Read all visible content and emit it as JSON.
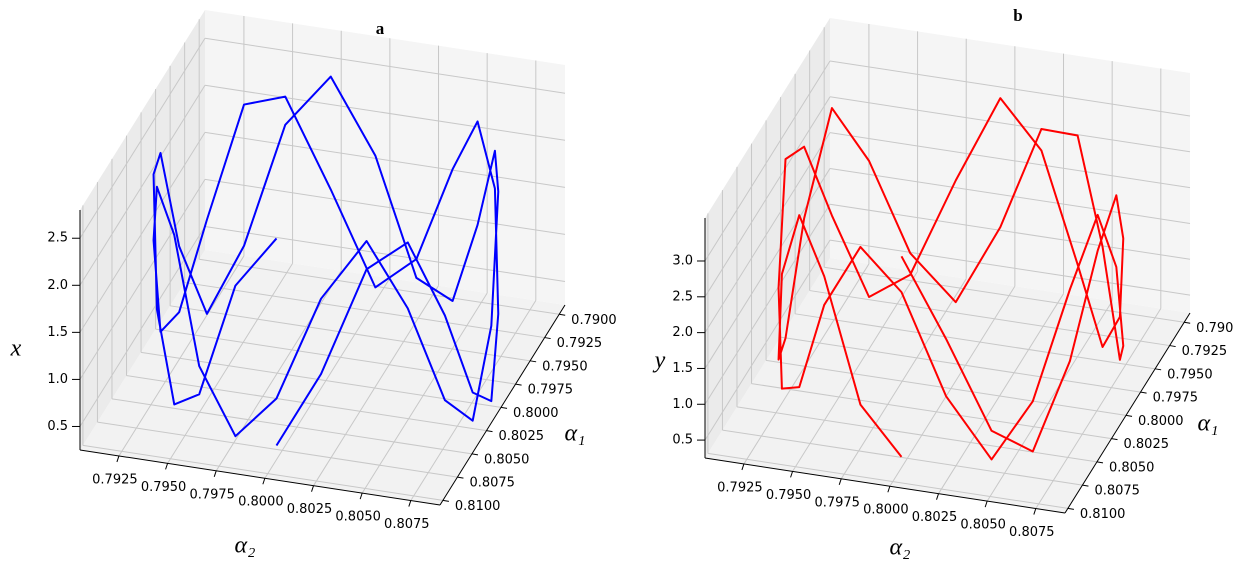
{
  "chart_data": [
    {
      "type": "line3d",
      "title": "a",
      "xlabel": "α₁",
      "ylabel": "α₂",
      "zlabel": "x",
      "color": "#0000ff",
      "xlim": [
        0.789,
        0.8105
      ],
      "ylim": [
        0.7905,
        0.809
      ],
      "zlim": [
        0.25,
        2.8
      ],
      "xticks": [
        {
          "value": 0.79,
          "label": "0.7900"
        },
        {
          "value": 0.7925,
          "label": "0.7925"
        },
        {
          "value": 0.795,
          "label": "0.7950"
        },
        {
          "value": 0.7975,
          "label": "0.7975"
        },
        {
          "value": 0.8,
          "label": "0.8000"
        },
        {
          "value": 0.8025,
          "label": "0.8025"
        },
        {
          "value": 0.805,
          "label": "0.8050"
        },
        {
          "value": 0.8075,
          "label": "0.8075"
        },
        {
          "value": 0.81,
          "label": "0.8100"
        }
      ],
      "yticks": [
        {
          "value": 0.7925,
          "label": "0.7925"
        },
        {
          "value": 0.795,
          "label": "0.7950"
        },
        {
          "value": 0.7975,
          "label": "0.7975"
        },
        {
          "value": 0.8,
          "label": "0.8000"
        },
        {
          "value": 0.8025,
          "label": "0.8025"
        },
        {
          "value": 0.805,
          "label": "0.8050"
        },
        {
          "value": 0.8075,
          "label": "0.8075"
        }
      ],
      "zticks": [
        0.5,
        {
          "value": 1,
          "label": "1.0"
        },
        1.5,
        {
          "value": 2,
          "label": "2.0"
        },
        2.5
      ],
      "x": [
        0.8085,
        0.8082,
        0.8074,
        0.806,
        0.8043,
        0.8022,
        0.8,
        0.7978,
        0.7957,
        0.794,
        0.7926,
        0.7918,
        0.7915,
        0.7918,
        0.7926,
        0.794,
        0.7957,
        0.7978,
        0.8,
        0.8022,
        0.8043,
        0.806,
        0.8074,
        0.8082,
        0.8085,
        0.8082,
        0.8074,
        0.806,
        0.8043,
        0.8022,
        0.8,
        0.7978,
        0.7957,
        0.794,
        0.7926,
        0.7918,
        0.7915,
        0.7918,
        0.7926,
        0.794,
        0.7957,
        0.7978,
        0.8,
        0.8022,
        0.8043,
        0.806,
        0.8074,
        0.8082,
        0.8085
      ],
      "y": [
        0.8,
        0.8022,
        0.8043,
        0.806,
        0.8074,
        0.8082,
        0.8085,
        0.8082,
        0.8074,
        0.806,
        0.8043,
        0.8022,
        0.8,
        0.7978,
        0.7957,
        0.794,
        0.7926,
        0.7918,
        0.7915,
        0.7918,
        0.7926,
        0.794,
        0.7957,
        0.7978,
        0.8,
        0.8022,
        0.8043,
        0.806,
        0.8074,
        0.8082,
        0.8085,
        0.8082,
        0.8074,
        0.806,
        0.8043,
        0.8022,
        0.8,
        0.7978,
        0.7957,
        0.794,
        0.7926,
        0.7918,
        0.7915,
        0.7918,
        0.7926,
        0.794,
        0.7957,
        0.7978,
        0.8
      ],
      "z": [
        0.4,
        1.2,
        2.3,
        2.5,
        1.6,
        0.6,
        0.3,
        1.0,
        2.1,
        2.6,
        1.9,
        0.8,
        0.4,
        1.4,
        2.4,
        2.4,
        1.3,
        0.5,
        0.5,
        1.7,
        2.5,
        2.2,
        1.0,
        0.4,
        0.9,
        2.0,
        2.6,
        1.8,
        0.7,
        0.3,
        1.1,
        2.3,
        2.5,
        1.5,
        0.5,
        0.6,
        1.8,
        2.6,
        2.1,
        0.9,
        0.3,
        1.2,
        2.4,
        2.4,
        1.2,
        0.4,
        0.7,
        2.0,
        2.6
      ]
    },
    {
      "type": "line3d",
      "title": "b",
      "xlabel": "α₁",
      "ylabel": "α₂",
      "zlabel": "y",
      "color": "#ff0000",
      "xlim": [
        0.789,
        0.8105
      ],
      "ylim": [
        0.7905,
        0.809
      ],
      "zlim": [
        0.25,
        3.6
      ],
      "xticks": [
        {
          "value": 0.79,
          "label": "0.7900"
        },
        {
          "value": 0.7925,
          "label": "0.7925"
        },
        {
          "value": 0.795,
          "label": "0.7950"
        },
        {
          "value": 0.7975,
          "label": "0.7975"
        },
        {
          "value": 0.8,
          "label": "0.8000"
        },
        {
          "value": 0.8025,
          "label": "0.8025"
        },
        {
          "value": 0.805,
          "label": "0.8050"
        },
        {
          "value": 0.8075,
          "label": "0.8075"
        },
        {
          "value": 0.81,
          "label": "0.8100"
        }
      ],
      "yticks": [
        {
          "value": 0.7925,
          "label": "0.7925"
        },
        {
          "value": 0.795,
          "label": "0.7950"
        },
        {
          "value": 0.7975,
          "label": "0.7975"
        },
        {
          "value": 0.8,
          "label": "0.8000"
        },
        {
          "value": 0.8025,
          "label": "0.8025"
        },
        {
          "value": 0.805,
          "label": "0.8050"
        },
        {
          "value": 0.8075,
          "label": "0.8075"
        }
      ],
      "zticks": [
        0.5,
        {
          "value": 1,
          "label": "1.0"
        },
        1.5,
        {
          "value": 2,
          "label": "2.0"
        },
        2.5,
        {
          "value": 3,
          "label": "3.0"
        }
      ],
      "x": [
        0.8085,
        0.8082,
        0.8074,
        0.806,
        0.8043,
        0.8022,
        0.8,
        0.7978,
        0.7957,
        0.794,
        0.7926,
        0.7918,
        0.7915,
        0.7918,
        0.7926,
        0.794,
        0.7957,
        0.7978,
        0.8,
        0.8022,
        0.8043,
        0.806,
        0.8074,
        0.8082,
        0.8085,
        0.8082,
        0.8074,
        0.806,
        0.8043,
        0.8022,
        0.8,
        0.7978,
        0.7957,
        0.794,
        0.7926,
        0.7918,
        0.7915,
        0.7918,
        0.7926,
        0.794,
        0.7957,
        0.7978,
        0.8,
        0.8022,
        0.8043,
        0.806,
        0.8074,
        0.8082,
        0.8085
      ],
      "y": [
        0.8,
        0.8022,
        0.8043,
        0.806,
        0.8074,
        0.8082,
        0.8085,
        0.8082,
        0.8074,
        0.806,
        0.8043,
        0.8022,
        0.8,
        0.7978,
        0.7957,
        0.794,
        0.7926,
        0.7918,
        0.7915,
        0.7918,
        0.7926,
        0.794,
        0.7957,
        0.7978,
        0.8,
        0.8022,
        0.8043,
        0.806,
        0.8074,
        0.8082,
        0.8085,
        0.8082,
        0.8074,
        0.806,
        0.8043,
        0.8022,
        0.8,
        0.7978,
        0.7957,
        0.794,
        0.7926,
        0.7918,
        0.7915,
        0.7918,
        0.7926,
        0.794,
        0.7957,
        0.7978,
        0.8
      ],
      "z": [
        3.2,
        2.1,
        0.8,
        0.4,
        1.5,
        2.8,
        3.3,
        2.4,
        1.0,
        0.3,
        1.2,
        2.6,
        3.2,
        2.0,
        0.7,
        0.5,
        1.8,
        3.0,
        3.1,
        1.6,
        0.5,
        0.8,
        2.2,
        3.2,
        2.7,
        1.3,
        0.4,
        1.1,
        2.5,
        3.3,
        2.3,
        0.9,
        0.4,
        1.7,
        3.0,
        2.9,
        1.4,
        0.3,
        1.0,
        2.4,
        3.3,
        2.0,
        0.6,
        0.6,
        2.1,
        3.2,
        2.6,
        1.0,
        0.4
      ]
    }
  ]
}
